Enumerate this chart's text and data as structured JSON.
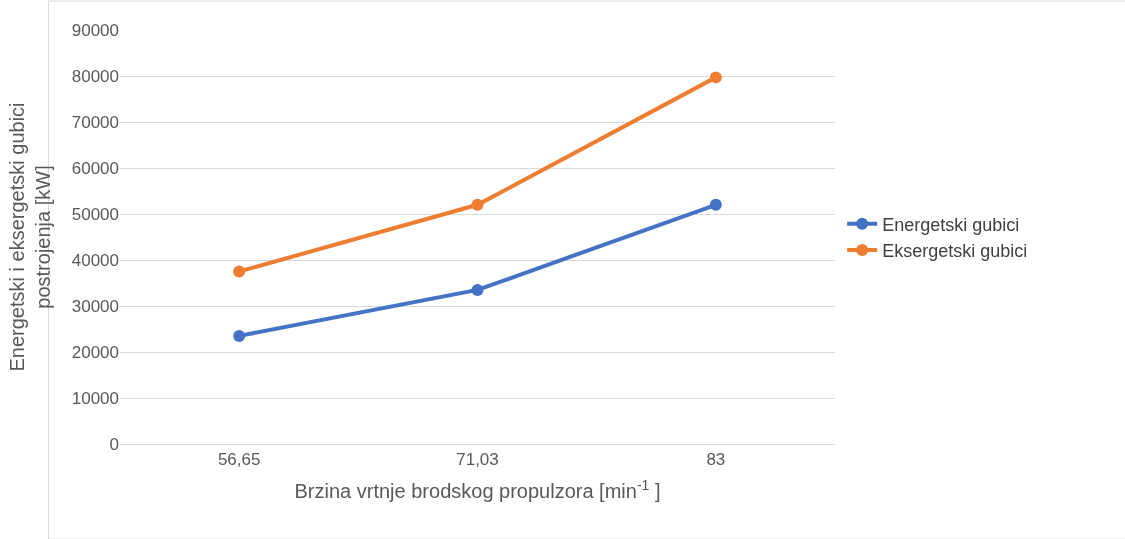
{
  "chart_data": {
    "type": "line",
    "xlabel": "Brzina vrtnje brodskog propulzora [min$^{-1}$ ]",
    "ylabel": "Energetski i eksergetski gubici postrojenja [kW]",
    "categories": [
      "56,65",
      "71,03",
      "83"
    ],
    "series": [
      {
        "name": "Energetski gubici",
        "color": "#4472c4",
        "values": [
          23500,
          33500,
          52000
        ]
      },
      {
        "name": "Eksergetski gubici",
        "color": "#ed7d31",
        "values": [
          37500,
          52000,
          79700
        ]
      }
    ],
    "ylim": [
      0,
      90000
    ],
    "yticks": [
      0,
      10000,
      20000,
      30000,
      40000,
      50000,
      60000,
      70000,
      80000,
      90000
    ],
    "grid": "y",
    "legend": "right",
    "marker": "circle",
    "line_style": "solid"
  }
}
